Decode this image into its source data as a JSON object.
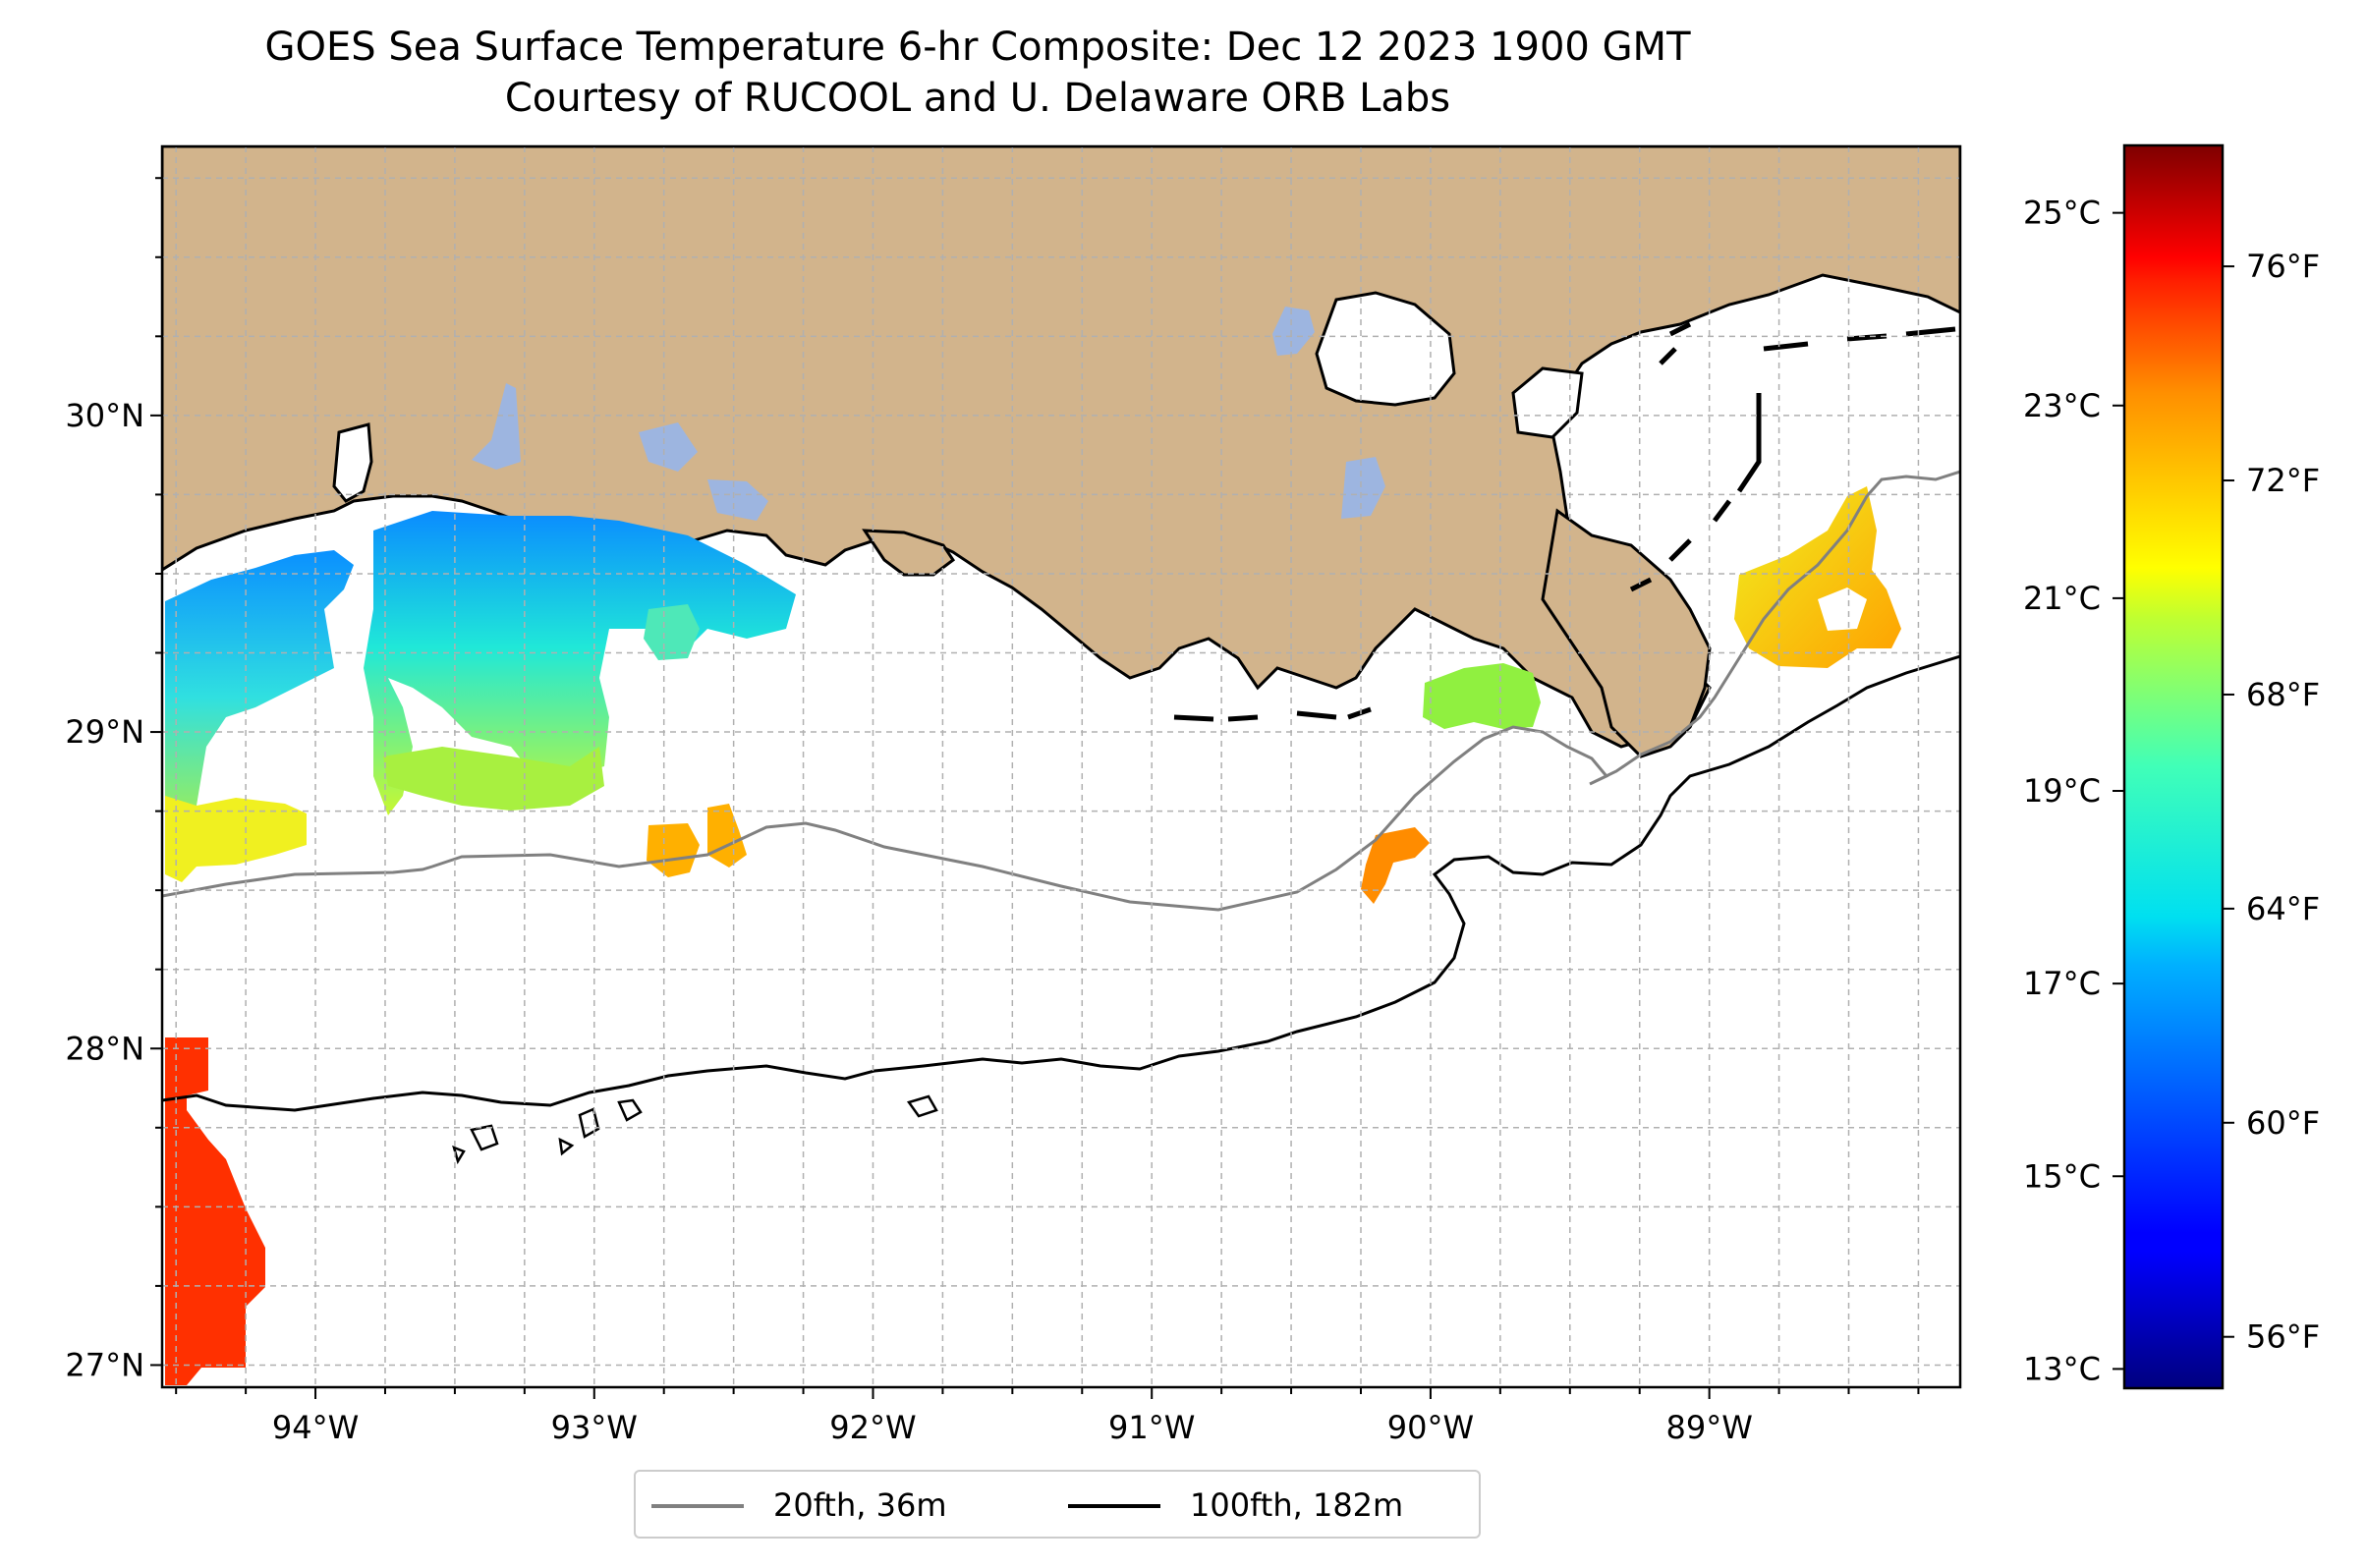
{
  "title": {
    "line1": "GOES Sea Surface Temperature 6-hr Composite: Dec 12 2023 1900 GMT",
    "line2": "Courtesy of RUCOOL and U. Delaware ORB Labs"
  },
  "map": {
    "lon_range": [
      -94.55,
      -88.1
    ],
    "lat_range": [
      26.93,
      30.85
    ],
    "lon_ticks": [
      "94°W",
      "93°W",
      "92°W",
      "91°W",
      "90°W",
      "89°W"
    ],
    "lat_ticks": [
      "30°N",
      "29°N",
      "28°N",
      "27°N"
    ],
    "land_color": "#d2b48c",
    "lake_color": "#9db5e0",
    "grid": "on, dashed"
  },
  "colorbar": {
    "celsius_ticks": [
      "25°C",
      "23°C",
      "21°C",
      "19°C",
      "17°C",
      "15°C",
      "13°C"
    ],
    "fahrenheit_ticks": [
      "76°F",
      "72°F",
      "68°F",
      "64°F",
      "60°F",
      "56°F"
    ],
    "colormap": "jet",
    "range_c": [
      12.8,
      25.7
    ]
  },
  "legend": {
    "placement": "bottom-center",
    "items": [
      {
        "label": "20fth, 36m",
        "color": "#808080"
      },
      {
        "label": "100fth, 182m",
        "color": "#000000"
      }
    ]
  },
  "sst_patches": [
    {
      "name": "sst-patch-west-coast",
      "color": "#22c8ff"
    },
    {
      "name": "sst-patch-cameron",
      "color": "#0a8cff"
    },
    {
      "name": "sst-patch-marsh-island",
      "color": "#4ee8b8"
    },
    {
      "name": "sst-patch-green-west",
      "color": "#a8f040"
    },
    {
      "name": "sst-patch-yellow-west",
      "color": "#f0f020"
    },
    {
      "name": "sst-patch-offshore-orange",
      "color": "#ffb000"
    },
    {
      "name": "sst-patch-terrebonne",
      "color": "#ff8c00"
    },
    {
      "name": "sst-patch-delta-green",
      "color": "#90f040"
    },
    {
      "name": "sst-patch-chandeleur",
      "color": "#f8c000"
    },
    {
      "name": "sst-patch-southwest-red",
      "color": "#ff3000"
    }
  ]
}
